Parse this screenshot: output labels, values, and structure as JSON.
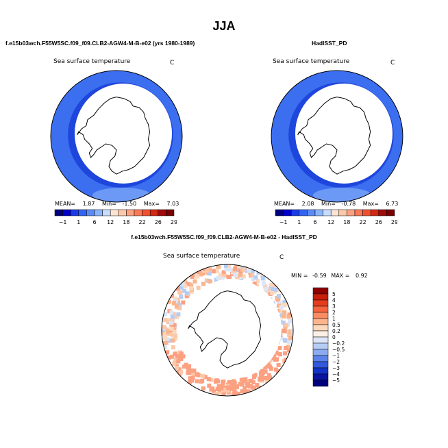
{
  "figure": {
    "title": "JJA",
    "diff_title": "f.e15b03wch.F55W5SC.f09_f09.CLB2-AGW4-M-B-e02 - HadISST_PD"
  },
  "chart_data": [
    {
      "type": "heatmap",
      "panel": "model",
      "title": "f.e15b03wch.F55W5SC.f09_f09.CLB2-AGW4-M-B-e02 (yrs 1980-1989)",
      "field": "Sea surface temperature",
      "units": "C",
      "stats": {
        "mean_label": "MEAN=",
        "mean": "1.87",
        "min_label": "Min=",
        "min": "-1.50",
        "max_label": "Max=",
        "max": "7.03"
      },
      "legend_ticks": [
        "−1",
        "1",
        "6",
        "12",
        "18",
        "22",
        "26",
        "29"
      ],
      "legend_colors": [
        "#00007f",
        "#0000c8",
        "#1a3ce6",
        "#3264f0",
        "#5a8cf5",
        "#8cb4fa",
        "#c8dcfc",
        "#fce4d2",
        "#fcc8a8",
        "#fca082",
        "#fa7855",
        "#f05032",
        "#d22814",
        "#a00a0a",
        "#780000"
      ]
    },
    {
      "type": "heatmap",
      "panel": "obs",
      "title": "HadISST_PD",
      "field": "Sea surface temperature",
      "units": "C",
      "stats": {
        "mean_label": "MEAN=",
        "mean": "2.08",
        "min_label": "Min=",
        "min": "-0.78",
        "max_label": "Max=",
        "max": "6.73"
      },
      "legend_ticks": [
        "−1",
        "1",
        "6",
        "12",
        "18",
        "22",
        "26",
        "29"
      ],
      "legend_colors": [
        "#00007f",
        "#0000c8",
        "#1a3ce6",
        "#3264f0",
        "#5a8cf5",
        "#8cb4fa",
        "#c8dcfc",
        "#fce4d2",
        "#fcc8a8",
        "#fca082",
        "#fa7855",
        "#f05032",
        "#d22814",
        "#a00a0a",
        "#780000"
      ]
    },
    {
      "type": "heatmap",
      "panel": "difference",
      "title": "f.e15b03wch.F55W5SC.f09_f09.CLB2-AGW4-M-B-e02 - HadISST_PD",
      "field": "Sea surface temperature",
      "units": "C",
      "stats": {
        "min_label": "MIN =",
        "min": "-0.59",
        "max_label": "MAX =",
        "max": "0.92"
      },
      "legend_levels": [
        "5",
        "4",
        "3",
        "2",
        "1",
        "0.5",
        "0.2",
        "0",
        "−0.2",
        "−0.5",
        "−1",
        "−2",
        "−3",
        "−4",
        "−5"
      ],
      "legend_colors": [
        "#8c0000",
        "#c81e0a",
        "#e63c1e",
        "#f5643c",
        "#fa8c64",
        "#fcb48c",
        "#fcd8bc",
        "#fcf0e6",
        "#dce6f8",
        "#b4cdf5",
        "#8caaf0",
        "#5a82ea",
        "#3258dc",
        "#1432c8",
        "#0a14a0",
        "#00007f"
      ]
    }
  ]
}
